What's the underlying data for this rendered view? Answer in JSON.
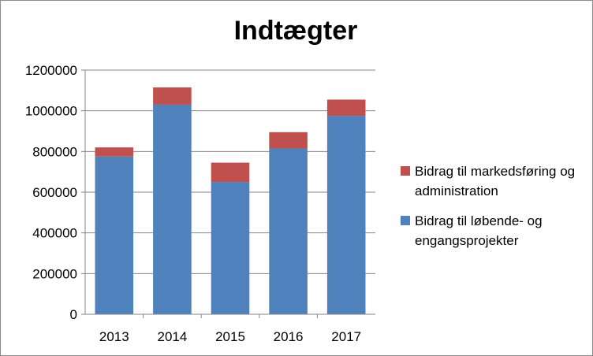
{
  "chart_data": {
    "type": "bar",
    "stacked": true,
    "title": "Indtægter",
    "xlabel": "",
    "ylabel": "",
    "categories": [
      "2013",
      "2014",
      "2015",
      "2016",
      "2017"
    ],
    "series": [
      {
        "name": "Bidrag til løbende- og engangsprojekter",
        "color": "#4f81bd",
        "values": [
          775000,
          1030000,
          650000,
          815000,
          975000
        ]
      },
      {
        "name": "Bidrag til markedsføring og administration",
        "color": "#c0504d",
        "values": [
          45000,
          85000,
          95000,
          80000,
          80000
        ]
      }
    ],
    "ylim": [
      0,
      1200000
    ],
    "yticks": [
      "0",
      "200000",
      "400000",
      "600000",
      "800000",
      "1000000",
      "1200000"
    ],
    "grid": true,
    "legend_position": "right",
    "legend_order": [
      1,
      0
    ]
  }
}
